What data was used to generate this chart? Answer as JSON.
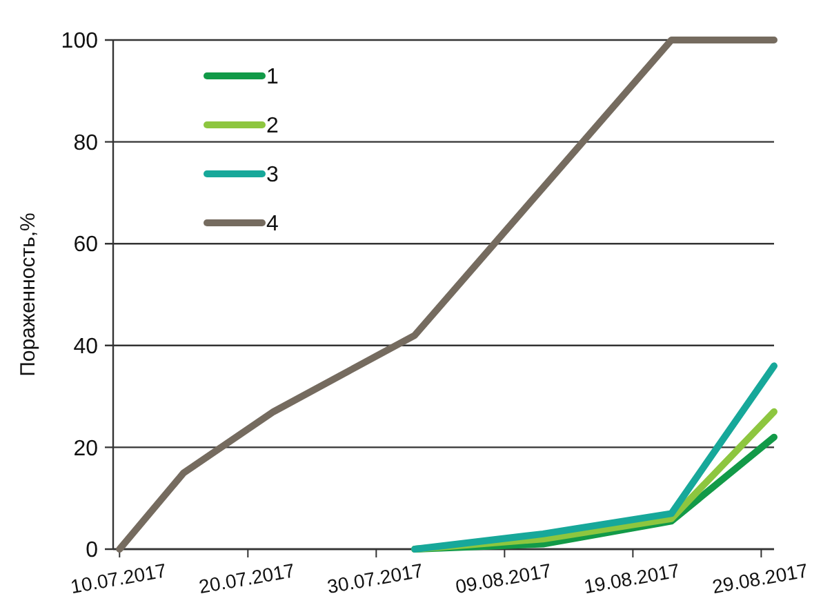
{
  "chart_data": {
    "type": "line",
    "ylabel": "Пораженность,%",
    "xlim": [
      "2017-07-09T12:00",
      "2017-08-30"
    ],
    "xticks": [
      {
        "value": "2017-07-10",
        "label": "10.07.2017"
      },
      {
        "value": "2017-07-20",
        "label": "20.07.2017"
      },
      {
        "value": "2017-07-30",
        "label": "30.07.2017"
      },
      {
        "value": "2017-08-09",
        "label": "09.08.2017"
      },
      {
        "value": "2017-08-19",
        "label": "19.08.2017"
      },
      {
        "value": "2017-08-29",
        "label": "29.08.2017"
      }
    ],
    "ylim": [
      0,
      100
    ],
    "yticks": [
      0,
      20,
      40,
      60,
      80,
      100
    ],
    "grid": "y",
    "legend": "top left",
    "marker": "none",
    "line_style": "solid",
    "series": [
      {
        "name": "1",
        "color": "#129a48",
        "x": [
          "2017-08-02",
          "2017-08-12",
          "2017-08-22",
          "2017-08-30"
        ],
        "values": [
          0,
          1,
          5.5,
          22
        ]
      },
      {
        "name": "2",
        "color": "#8dc63f",
        "x": [
          "2017-08-02",
          "2017-08-12",
          "2017-08-22",
          "2017-08-30"
        ],
        "values": [
          0,
          2,
          6,
          27
        ]
      },
      {
        "name": "3",
        "color": "#17a89a",
        "x": [
          "2017-08-02",
          "2017-08-12",
          "2017-08-22",
          "2017-08-30"
        ],
        "values": [
          0,
          3,
          7,
          36
        ]
      },
      {
        "name": "4",
        "color": "#756b5f",
        "x": [
          "2017-07-10",
          "2017-07-15",
          "2017-07-22",
          "2017-08-02",
          "2017-08-12",
          "2017-08-22",
          "2017-08-30"
        ],
        "values": [
          0,
          15,
          27,
          42,
          71,
          100,
          100
        ]
      }
    ]
  }
}
